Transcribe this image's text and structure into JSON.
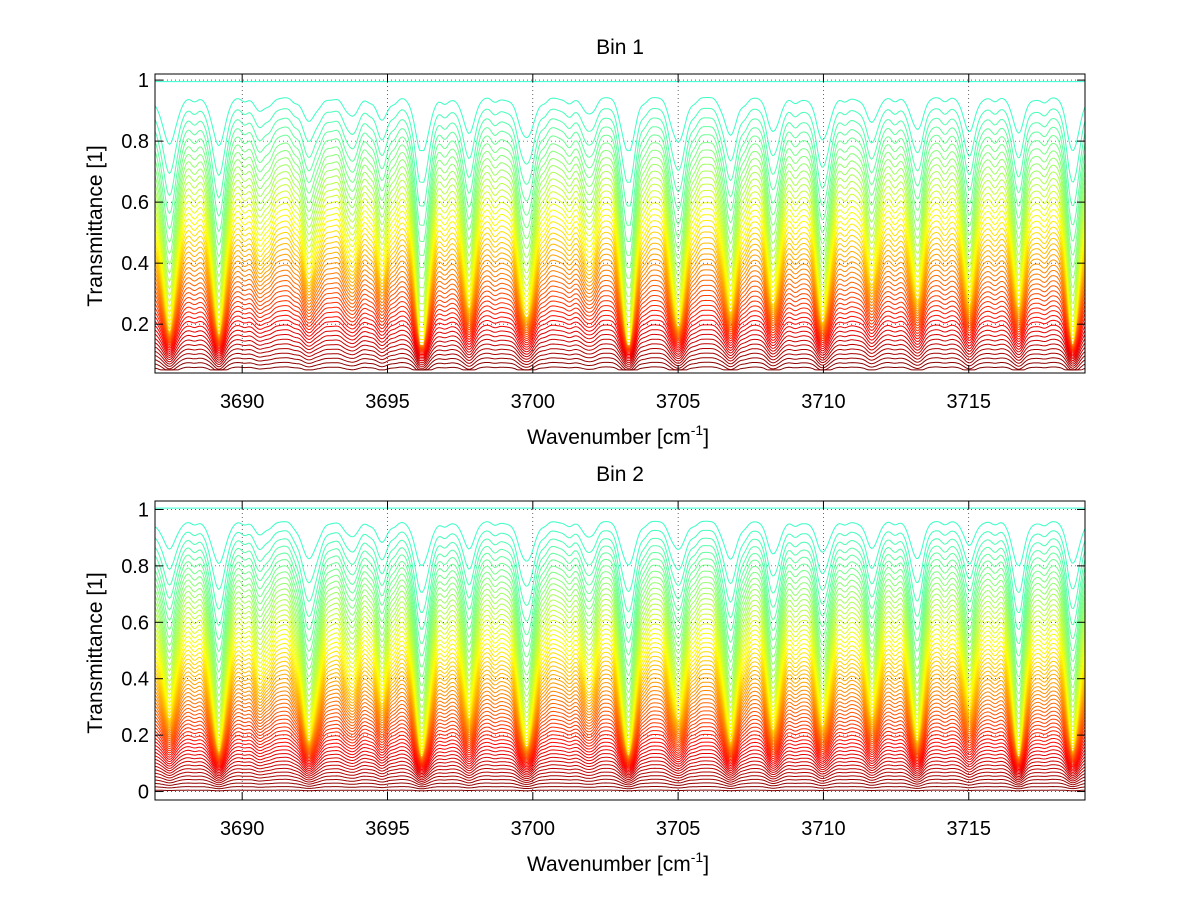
{
  "figure": {
    "background": "#ffffff"
  },
  "chart_data": [
    {
      "type": "line",
      "title": "Bin 1",
      "xlabel": "Wavenumber [cm",
      "xlabel_sup": "-1",
      "xlabel_suffix": "]",
      "ylabel": "Transmittance [1]",
      "xlim": [
        3687,
        3719
      ],
      "ylim": [
        0.04,
        1.02
      ],
      "xticks": [
        3690,
        3695,
        3700,
        3705,
        3710,
        3715
      ],
      "xtick_labels": [
        "3690",
        "3695",
        "3700",
        "3705",
        "3710",
        "3715"
      ],
      "yticks": [
        0.2,
        0.4,
        0.6,
        0.8,
        1
      ],
      "ytick_labels": [
        "0.2",
        "0.4",
        "0.6",
        "0.8",
        "1"
      ],
      "grid": true,
      "colormap": "jet (upper half: cyan to dark red)",
      "series_count": 48,
      "baseline_range": [
        0.06,
        0.995
      ],
      "absorption_lines": [
        {
          "center": 3687.5,
          "depth": 0.8,
          "width": 0.35
        },
        {
          "center": 3689.2,
          "depth": 0.8,
          "width": 0.32
        },
        {
          "center": 3690.6,
          "depth": 0.25,
          "width": 0.25
        },
        {
          "center": 3692.3,
          "depth": 0.45,
          "width": 0.3
        },
        {
          "center": 3693.8,
          "depth": 0.35,
          "width": 0.28
        },
        {
          "center": 3694.8,
          "depth": 0.4,
          "width": 0.25
        },
        {
          "center": 3696.2,
          "depth": 1.0,
          "width": 0.33
        },
        {
          "center": 3697.8,
          "depth": 0.6,
          "width": 0.3
        },
        {
          "center": 3699.8,
          "depth": 0.75,
          "width": 0.35
        },
        {
          "center": 3701.9,
          "depth": 0.3,
          "width": 0.28
        },
        {
          "center": 3703.3,
          "depth": 1.0,
          "width": 0.3
        },
        {
          "center": 3705.0,
          "depth": 0.8,
          "width": 0.32
        },
        {
          "center": 3706.8,
          "depth": 0.7,
          "width": 0.28
        },
        {
          "center": 3708.3,
          "depth": 0.6,
          "width": 0.3
        },
        {
          "center": 3710.0,
          "depth": 0.75,
          "width": 0.32
        },
        {
          "center": 3711.7,
          "depth": 0.4,
          "width": 0.28
        },
        {
          "center": 3713.2,
          "depth": 0.5,
          "width": 0.3
        },
        {
          "center": 3715.0,
          "depth": 0.55,
          "width": 0.28
        },
        {
          "center": 3716.7,
          "depth": 0.6,
          "width": 0.28
        },
        {
          "center": 3718.6,
          "depth": 0.95,
          "width": 0.3
        }
      ]
    },
    {
      "type": "line",
      "title": "Bin 2",
      "xlabel": "Wavenumber [cm",
      "xlabel_sup": "-1",
      "xlabel_suffix": "]",
      "ylabel": "Transmittance [1]",
      "xlim": [
        3687,
        3719
      ],
      "ylim": [
        -0.03,
        1.03
      ],
      "xticks": [
        3690,
        3695,
        3700,
        3705,
        3710,
        3715
      ],
      "xtick_labels": [
        "3690",
        "3695",
        "3700",
        "3705",
        "3710",
        "3715"
      ],
      "yticks": [
        0,
        0.2,
        0.4,
        0.6,
        0.8,
        1
      ],
      "ytick_labels": [
        "0",
        "0.2",
        "0.4",
        "0.6",
        "0.8",
        "1"
      ],
      "grid": true,
      "colormap": "jet (upper half: cyan to dark red)",
      "series_count": 60,
      "baseline_range": [
        0.005,
        1.005
      ],
      "absorption_lines": [
        {
          "center": 3687.5,
          "depth": 0.55,
          "width": 0.35
        },
        {
          "center": 3689.2,
          "depth": 0.85,
          "width": 0.35
        },
        {
          "center": 3690.6,
          "depth": 0.3,
          "width": 0.25
        },
        {
          "center": 3692.3,
          "depth": 0.85,
          "width": 0.35
        },
        {
          "center": 3693.8,
          "depth": 0.35,
          "width": 0.28
        },
        {
          "center": 3694.8,
          "depth": 0.45,
          "width": 0.25
        },
        {
          "center": 3696.2,
          "depth": 0.95,
          "width": 0.35
        },
        {
          "center": 3697.8,
          "depth": 0.55,
          "width": 0.3
        },
        {
          "center": 3699.8,
          "depth": 0.9,
          "width": 0.35
        },
        {
          "center": 3701.9,
          "depth": 0.35,
          "width": 0.28
        },
        {
          "center": 3703.3,
          "depth": 0.95,
          "width": 0.32
        },
        {
          "center": 3705.0,
          "depth": 0.6,
          "width": 0.32
        },
        {
          "center": 3706.8,
          "depth": 0.85,
          "width": 0.3
        },
        {
          "center": 3708.3,
          "depth": 0.7,
          "width": 0.3
        },
        {
          "center": 3710.0,
          "depth": 0.65,
          "width": 0.32
        },
        {
          "center": 3711.7,
          "depth": 0.55,
          "width": 0.28
        },
        {
          "center": 3713.2,
          "depth": 0.75,
          "width": 0.3
        },
        {
          "center": 3715.0,
          "depth": 0.45,
          "width": 0.28
        },
        {
          "center": 3716.7,
          "depth": 0.95,
          "width": 0.3
        },
        {
          "center": 3718.6,
          "depth": 0.9,
          "width": 0.3
        }
      ]
    }
  ]
}
